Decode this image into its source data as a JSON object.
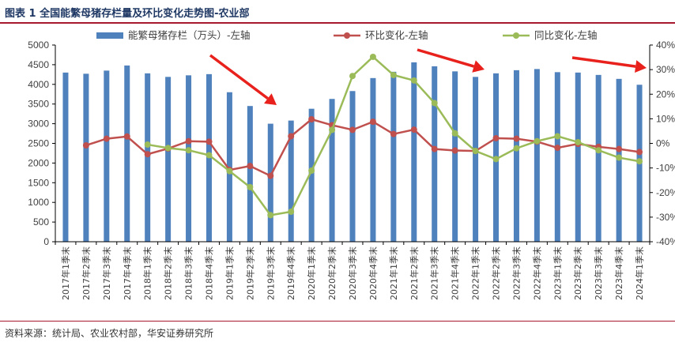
{
  "title": "图表 1  全国能繁母猪存栏量及环比变化走势图-农业部",
  "source": "资料来源：统计局、农业农村部，华安证券研究所",
  "colors": {
    "bar": "#4f81bd",
    "qoq": "#c0504d",
    "yoy": "#9bbb59",
    "arrow": "#e8211c",
    "accent": "#a6192e"
  },
  "chart_data": {
    "type": "bar",
    "categories": [
      "2017年1季末",
      "2017年2季末",
      "2017年3季末",
      "2017年4季末",
      "2018年1季末",
      "2018年2季末",
      "2018年3季末",
      "2018年4季末",
      "2019年1季末",
      "2019年2季末",
      "2019年3季末",
      "2019年4季末",
      "2020年1季末",
      "2020年2季末",
      "2020年3季末",
      "2020年4季末",
      "2021年1季末",
      "2021年2季末",
      "2021年3季末",
      "2021年4季末",
      "2022年1季末",
      "2022年2季末",
      "2022年3季末",
      "2022年4季末",
      "2023年1季末",
      "2023年2季末",
      "2023年3季末",
      "2023年4季末",
      "2024年1季末"
    ],
    "series": [
      {
        "name": "能繁母猪存栏（万头）-左轴",
        "type": "bar",
        "axis": "left",
        "values": [
          4300,
          4270,
          4350,
          4480,
          4280,
          4190,
          4230,
          4260,
          3800,
          3450,
          3000,
          3080,
          3380,
          3630,
          3830,
          4160,
          4320,
          4560,
          4460,
          4330,
          4190,
          4280,
          4360,
          4390,
          4310,
          4300,
          4240,
          4140,
          3990
        ]
      },
      {
        "name": "环比变化-左轴",
        "type": "line",
        "axis": "right",
        "unit": "%",
        "values": [
          null,
          -0.8,
          1.9,
          2.8,
          -4.4,
          -2.1,
          0.9,
          0.7,
          -10.8,
          -9.2,
          -13.2,
          2.9,
          9.8,
          7.4,
          5.5,
          8.8,
          3.8,
          5.6,
          -2.3,
          -2.9,
          -3.1,
          2.1,
          1.9,
          0.7,
          -1.8,
          -0.2,
          -1.4,
          -2.3,
          -3.5
        ]
      },
      {
        "name": "同比变化-左轴",
        "type": "line",
        "axis": "right",
        "unit": "%",
        "values": [
          null,
          null,
          null,
          null,
          -0.5,
          -1.9,
          -2.8,
          -4.8,
          -11.3,
          -17.8,
          -29.2,
          -27.8,
          -11.1,
          5.5,
          27.4,
          35.2,
          27.8,
          25.6,
          16.4,
          4.1,
          -3.1,
          -6.4,
          -2.0,
          0.9,
          2.9,
          0.5,
          -2.8,
          -5.8,
          -7.3
        ]
      }
    ],
    "yleft": {
      "ylim": [
        0,
        5000
      ],
      "ticks": [
        "0",
        "500",
        "1000",
        "1500",
        "2000",
        "2500",
        "3000",
        "3500",
        "4000",
        "4500",
        "5000"
      ]
    },
    "yright": {
      "ylim": [
        -40,
        40
      ],
      "ticks": [
        "-40%",
        "-30%",
        "-20%",
        "-10%",
        "0%",
        "10%",
        "20%",
        "30%",
        "40%"
      ]
    },
    "grid": false,
    "legend_position": "top"
  }
}
